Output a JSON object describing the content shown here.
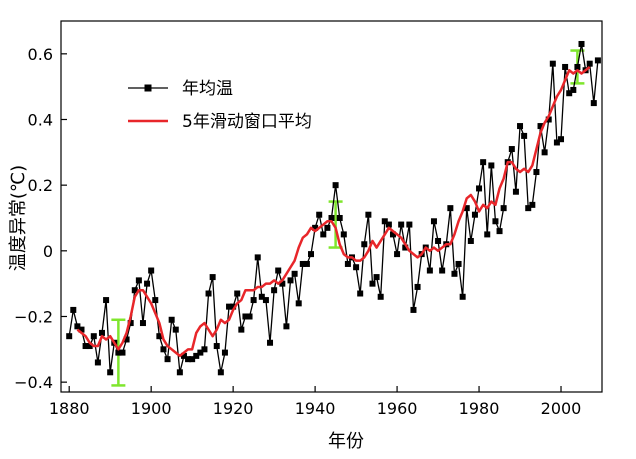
{
  "chart_data": {
    "type": "line",
    "xlabel": "年份",
    "ylabel": "温度异常(℃)",
    "xlim": [
      1878,
      2010
    ],
    "ylim": [
      -0.43,
      0.7
    ],
    "xticks": [
      1880,
      1900,
      1920,
      1940,
      1960,
      1980,
      2000
    ],
    "yticks": [
      -0.4,
      -0.2,
      0,
      0.2,
      0.4,
      0.6
    ],
    "ytick_labels": [
      "−0.4",
      "−0.2",
      "0",
      "0.2",
      "0.4",
      "0.6"
    ],
    "grid": false,
    "legend_position": "top-left",
    "colors": {
      "annual": "#000000",
      "moving_avg": "#e8262a",
      "error_bar": "#7fe62d"
    },
    "series": [
      {
        "name": "年均温",
        "marker": "square",
        "x": [
          1880,
          1881,
          1882,
          1883,
          1884,
          1885,
          1886,
          1887,
          1888,
          1889,
          1890,
          1891,
          1892,
          1893,
          1894,
          1895,
          1896,
          1897,
          1898,
          1899,
          1900,
          1901,
          1902,
          1903,
          1904,
          1905,
          1906,
          1907,
          1908,
          1909,
          1910,
          1911,
          1912,
          1913,
          1914,
          1915,
          1916,
          1917,
          1918,
          1919,
          1920,
          1921,
          1922,
          1923,
          1924,
          1925,
          1926,
          1927,
          1928,
          1929,
          1930,
          1931,
          1932,
          1933,
          1934,
          1935,
          1936,
          1937,
          1938,
          1939,
          1940,
          1941,
          1942,
          1943,
          1944,
          1945,
          1946,
          1947,
          1948,
          1949,
          1950,
          1951,
          1952,
          1953,
          1954,
          1955,
          1956,
          1957,
          1958,
          1959,
          1960,
          1961,
          1962,
          1963,
          1964,
          1965,
          1966,
          1967,
          1968,
          1969,
          1970,
          1971,
          1972,
          1973,
          1974,
          1975,
          1976,
          1977,
          1978,
          1979,
          1980,
          1981,
          1982,
          1983,
          1984,
          1985,
          1986,
          1987,
          1988,
          1989,
          1990,
          1991,
          1992,
          1993,
          1994,
          1995,
          1996,
          1997,
          1998,
          1999,
          2000,
          2001,
          2002,
          2003,
          2004,
          2005,
          2006,
          2007,
          2008,
          2009
        ],
        "values": [
          -0.26,
          -0.18,
          -0.23,
          -0.24,
          -0.29,
          -0.29,
          -0.26,
          -0.34,
          -0.25,
          -0.15,
          -0.37,
          -0.28,
          -0.31,
          -0.31,
          -0.27,
          -0.22,
          -0.12,
          -0.09,
          -0.22,
          -0.1,
          -0.06,
          -0.15,
          -0.26,
          -0.3,
          -0.33,
          -0.21,
          -0.24,
          -0.37,
          -0.32,
          -0.33,
          -0.33,
          -0.32,
          -0.31,
          -0.3,
          -0.13,
          -0.08,
          -0.29,
          -0.37,
          -0.31,
          -0.17,
          -0.17,
          -0.13,
          -0.24,
          -0.2,
          -0.2,
          -0.15,
          -0.02,
          -0.14,
          -0.15,
          -0.28,
          -0.12,
          -0.06,
          -0.1,
          -0.23,
          -0.09,
          -0.07,
          -0.16,
          -0.04,
          -0.04,
          -0.01,
          0.07,
          0.11,
          0.05,
          0.07,
          0.1,
          0.2,
          0.1,
          0.05,
          -0.04,
          -0.02,
          -0.05,
          -0.13,
          0.02,
          0.11,
          -0.1,
          -0.08,
          -0.14,
          0.09,
          0.08,
          0.05,
          -0.01,
          0.08,
          0.01,
          0.08,
          -0.18,
          -0.11,
          -0.01,
          0.01,
          -0.06,
          0.09,
          0.03,
          -0.06,
          0.02,
          0.13,
          -0.07,
          -0.04,
          -0.14,
          0.13,
          0.03,
          0.11,
          0.19,
          0.27,
          0.05,
          0.26,
          0.09,
          0.06,
          0.13,
          0.27,
          0.31,
          0.18,
          0.38,
          0.35,
          0.13,
          0.14,
          0.24,
          0.38,
          0.3,
          0.4,
          0.57,
          0.33,
          0.34,
          0.56,
          0.48,
          0.49,
          0.56,
          0.63,
          0.55,
          0.57,
          0.45,
          0.58
        ]
      },
      {
        "name": "5年滑动窗口平均",
        "x": [
          1882,
          1883,
          1884,
          1885,
          1886,
          1887,
          1888,
          1889,
          1890,
          1891,
          1892,
          1893,
          1894,
          1895,
          1896,
          1897,
          1898,
          1899,
          1900,
          1901,
          1902,
          1903,
          1904,
          1905,
          1906,
          1907,
          1908,
          1909,
          1910,
          1911,
          1912,
          1913,
          1914,
          1915,
          1916,
          1917,
          1918,
          1919,
          1920,
          1921,
          1922,
          1923,
          1924,
          1925,
          1926,
          1927,
          1928,
          1929,
          1930,
          1931,
          1932,
          1933,
          1934,
          1935,
          1936,
          1937,
          1938,
          1939,
          1940,
          1941,
          1942,
          1943,
          1944,
          1945,
          1946,
          1947,
          1948,
          1949,
          1950,
          1951,
          1952,
          1953,
          1954,
          1955,
          1956,
          1957,
          1958,
          1959,
          1960,
          1961,
          1962,
          1963,
          1964,
          1965,
          1966,
          1967,
          1968,
          1969,
          1970,
          1971,
          1972,
          1973,
          1974,
          1975,
          1976,
          1977,
          1978,
          1979,
          1980,
          1981,
          1982,
          1983,
          1984,
          1985,
          1986,
          1987,
          1988,
          1989,
          1990,
          1991,
          1992,
          1993,
          1994,
          1995,
          1996,
          1997,
          1998,
          1999,
          2000,
          2001,
          2002,
          2003,
          2004,
          2005,
          2006,
          2007
        ],
        "values": [
          -0.24,
          -0.25,
          -0.26,
          -0.28,
          -0.29,
          -0.29,
          -0.26,
          -0.27,
          -0.26,
          -0.28,
          -0.3,
          -0.28,
          -0.25,
          -0.2,
          -0.14,
          -0.12,
          -0.12,
          -0.14,
          -0.16,
          -0.19,
          -0.22,
          -0.27,
          -0.29,
          -0.3,
          -0.31,
          -0.32,
          -0.31,
          -0.3,
          -0.3,
          -0.25,
          -0.23,
          -0.22,
          -0.24,
          -0.26,
          -0.24,
          -0.21,
          -0.22,
          -0.21,
          -0.18,
          -0.16,
          -0.15,
          -0.12,
          -0.12,
          -0.12,
          -0.11,
          -0.11,
          -0.1,
          -0.1,
          -0.09,
          -0.1,
          -0.09,
          -0.07,
          -0.05,
          -0.03,
          0.01,
          0.04,
          0.05,
          0.07,
          0.06,
          0.07,
          0.08,
          0.09,
          0.09,
          0.07,
          0.02,
          -0.01,
          -0.02,
          -0.02,
          -0.03,
          -0.03,
          -0.02,
          0.0,
          0.03,
          0.01,
          0.03,
          0.05,
          0.07,
          0.06,
          0.05,
          0.04,
          0.02,
          0.0,
          -0.01,
          -0.02,
          -0.01,
          0.01,
          0.0,
          0.01,
          0.0,
          0.01,
          0.02,
          0.02,
          0.05,
          0.09,
          0.12,
          0.16,
          0.17,
          0.15,
          0.12,
          0.14,
          0.13,
          0.15,
          0.14,
          0.19,
          0.22,
          0.27,
          0.27,
          0.25,
          0.24,
          0.25,
          0.24,
          0.26,
          0.31,
          0.36,
          0.39,
          0.41,
          0.44,
          0.47,
          0.49,
          0.52,
          0.55,
          0.54,
          0.55,
          0.54,
          0.55,
          0.56
        ]
      }
    ],
    "error_bars": [
      {
        "x": 1892,
        "low": -0.41,
        "high": -0.21
      },
      {
        "x": 1945,
        "low": 0.01,
        "high": 0.15
      },
      {
        "x": 2004,
        "low": 0.51,
        "high": 0.61
      }
    ]
  }
}
